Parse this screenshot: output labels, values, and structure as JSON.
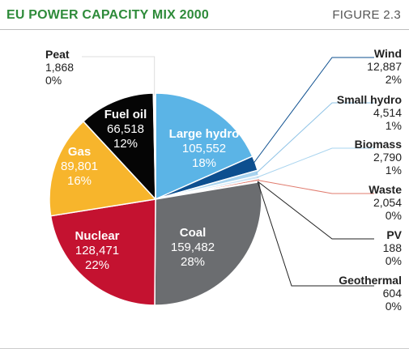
{
  "header": {
    "title": "EU POWER CAPACITY MIX 2000",
    "figure_label": "FIGURE 2.3"
  },
  "chart_data": {
    "type": "pie",
    "title": "EU POWER CAPACITY MIX 2000",
    "slices": [
      {
        "name": "Large hydro",
        "value": 105552,
        "value_label": "105,552",
        "pct_label": "18%",
        "color": "#5bb4e6"
      },
      {
        "name": "Wind",
        "value": 12887,
        "value_label": "12,887",
        "pct_label": "2%",
        "color": "#0d4f8f"
      },
      {
        "name": "Small hydro",
        "value": 4514,
        "value_label": "4,514",
        "pct_label": "1%",
        "color": "#a9d4ef"
      },
      {
        "name": "Biomass",
        "value": 2790,
        "value_label": "2,790",
        "pct_label": "1%",
        "color": "#cfe6f5"
      },
      {
        "name": "Waste",
        "value": 2054,
        "value_label": "2,054",
        "pct_label": "0%",
        "color": "#e07b6e"
      },
      {
        "name": "PV",
        "value": 188,
        "value_label": "188",
        "pct_label": "0%",
        "color": "#888888"
      },
      {
        "name": "Geothermal",
        "value": 604,
        "value_label": "604",
        "pct_label": "0%",
        "color": "#333333"
      },
      {
        "name": "Coal",
        "value": 159482,
        "value_label": "159,482",
        "pct_label": "28%",
        "color": "#6b6d70"
      },
      {
        "name": "Nuclear",
        "value": 128471,
        "value_label": "128,471",
        "pct_label": "22%",
        "color": "#c41230"
      },
      {
        "name": "Gas",
        "value": 89801,
        "value_label": "89,801",
        "pct_label": "16%",
        "color": "#f7b52c"
      },
      {
        "name": "Fuel oil",
        "value": 66518,
        "value_label": "66,518",
        "pct_label": "12%",
        "color": "#050505"
      },
      {
        "name": "Peat",
        "value": 1868,
        "value_label": "1,868",
        "pct_label": "0%",
        "color": "#ffffff"
      }
    ],
    "colors": {
      "label_on_dark": "#ffffff",
      "label_outside": "#222222",
      "leader_default": "#333333",
      "title_green": "#2e8b3a"
    }
  }
}
